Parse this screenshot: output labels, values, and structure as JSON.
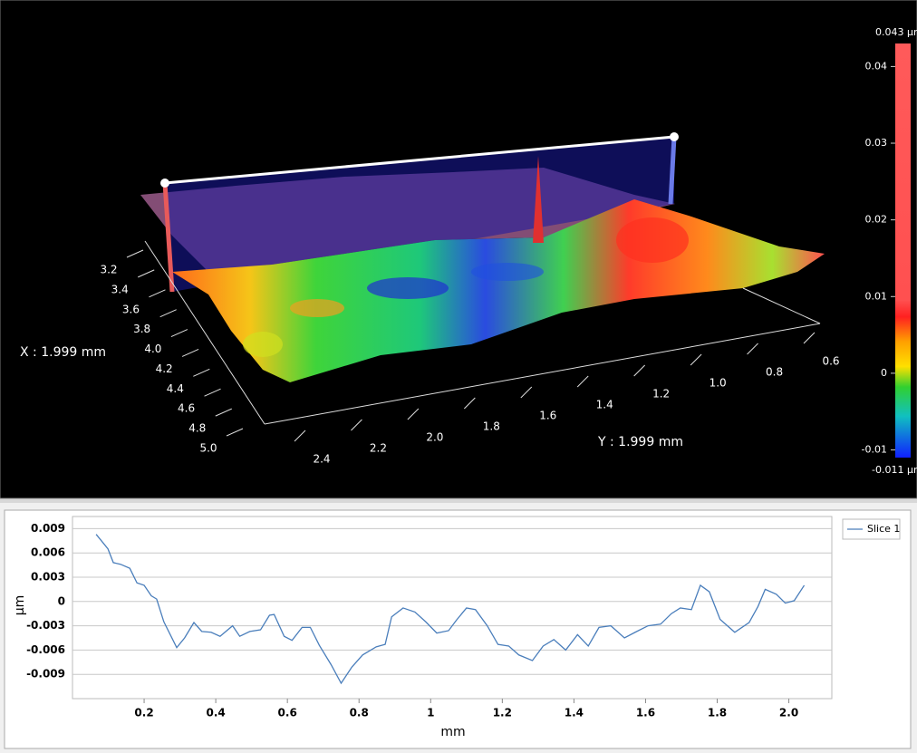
{
  "surface_view": {
    "x_label": "X : 1.999 mm",
    "y_label": "Y : 1.999 mm",
    "x_ticks": [
      3.2,
      3.4,
      3.6,
      3.8,
      {
        "value": 4,
        "label": "4.0"
      },
      4.2,
      4.4,
      4.6,
      4.8,
      {
        "value": 5,
        "label": "5.0"
      }
    ],
    "y_ticks": [
      2.4,
      2.2,
      {
        "value": 2,
        "label": "2.0"
      },
      1.8,
      1.6,
      1.4,
      1.2,
      {
        "value": 1,
        "label": "1.0"
      },
      0.8,
      0.6
    ]
  },
  "colorbar": {
    "max": {
      "value": 0.043,
      "label": "0.043 µm"
    },
    "min": {
      "value": -0.011,
      "label": "-0.011 µm"
    },
    "ticks": [
      0.04,
      0.03,
      0.02,
      0.01,
      0,
      -0.01
    ]
  },
  "chart_data": {
    "type": "line",
    "xlabel": "mm",
    "ylabel": "µm",
    "xlim": [
      0,
      2.12
    ],
    "ylim": [
      -0.012,
      0.0105
    ],
    "xticks": [
      0.2,
      0.4,
      0.6,
      0.8,
      1,
      1.2,
      1.4,
      1.6,
      1.8,
      {
        "value": 2,
        "label": "2.0"
      }
    ],
    "yticks": [
      0.009,
      0.006,
      0.003,
      0,
      -0.003,
      -0.006,
      -0.009
    ],
    "grid": true,
    "legend": "right",
    "x": [
      0.066,
      0.079,
      0.099,
      0.114,
      0.134,
      0.16,
      0.18,
      0.2,
      0.22,
      0.235,
      0.255,
      0.291,
      0.313,
      0.339,
      0.361,
      0.387,
      0.412,
      0.447,
      0.467,
      0.495,
      0.525,
      0.55,
      0.563,
      0.591,
      0.613,
      0.641,
      0.664,
      0.689,
      0.722,
      0.75,
      0.78,
      0.81,
      0.848,
      0.873,
      0.891,
      0.923,
      0.956,
      0.986,
      1.017,
      1.05,
      1.072,
      1.1,
      1.125,
      1.158,
      1.188,
      1.218,
      1.246,
      1.284,
      1.314,
      1.344,
      1.377,
      1.41,
      1.44,
      1.47,
      1.503,
      1.541,
      1.571,
      1.607,
      1.642,
      1.672,
      1.697,
      1.728,
      1.753,
      1.778,
      1.808,
      1.849,
      1.889,
      1.914,
      1.934,
      1.965,
      1.99,
      2.015,
      2.043
    ],
    "series": [
      {
        "name": "Slice 1",
        "color": "#4a7ebb",
        "values": [
          0.0083,
          0.0076,
          0.0065,
          0.0048,
          0.0046,
          0.0041,
          0.0023,
          0.002,
          0.0007,
          0.0003,
          -0.0025,
          -0.0057,
          -0.0045,
          -0.0026,
          -0.0037,
          -0.0038,
          -0.0043,
          -0.003,
          -0.0043,
          -0.0037,
          -0.0035,
          -0.0017,
          -0.0016,
          -0.0043,
          -0.0048,
          -0.0032,
          -0.0032,
          -0.0054,
          -0.0078,
          -0.0101,
          -0.0081,
          -0.0066,
          -0.0056,
          -0.0053,
          -0.0019,
          -0.0008,
          -0.0013,
          -0.0025,
          -0.0039,
          -0.0036,
          -0.0023,
          -0.0008,
          -0.001,
          -0.003,
          -0.0053,
          -0.0055,
          -0.0066,
          -0.0073,
          -0.0055,
          -0.0047,
          -0.006,
          -0.0041,
          -0.0055,
          -0.0032,
          -0.003,
          -0.0045,
          -0.0038,
          -0.003,
          -0.0028,
          -0.0015,
          -0.0008,
          -0.001,
          0.002,
          0.0012,
          -0.0022,
          -0.0038,
          -0.0026,
          -0.0006,
          0.0015,
          0.0009,
          -0.0002,
          0.0001,
          0.002
        ]
      }
    ]
  }
}
